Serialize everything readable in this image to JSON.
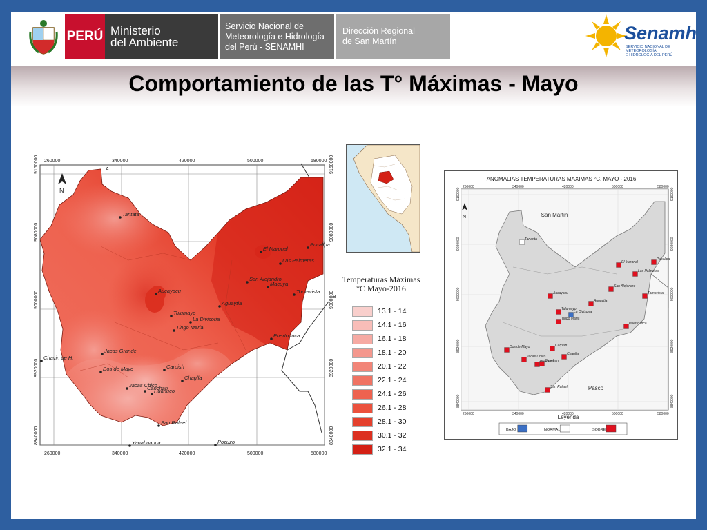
{
  "header": {
    "country": "PERÚ",
    "ministry_line1": "Ministerio",
    "ministry_line2": "del Ambiente",
    "service_line1": "Servicio Nacional de",
    "service_line2": "Meteorología e Hidrología",
    "service_line3": "del Perú - SENAMHI",
    "regional_line1": "Dirección Regional",
    "regional_line2": "de San Martín",
    "brand": "Senamhi",
    "brand_sub1": "SERVICIO NACIONAL DE METEOROLOGÍA",
    "brand_sub2": "E HIDROLOGÍA DEL PERÚ"
  },
  "title": "Comportamiento de las T° Máximas - Mayo",
  "left_map": {
    "north": "N",
    "top_ticks": [
      "260000",
      "340000",
      "420000",
      "500000",
      "580000"
    ],
    "bottom_ticks": [
      "260000",
      "340000",
      "420000",
      "500000",
      "580000"
    ],
    "left_ticks": [
      "9160000",
      "9080000",
      "9000000",
      "8920000",
      "8840000"
    ],
    "right_ticks": [
      "9160000",
      "9080000",
      "9000000",
      "8920000",
      "8840000"
    ],
    "corner_a": "A",
    "corner_b": "B",
    "places": [
      {
        "name": "Tantata"
      },
      {
        "name": "El Maronal"
      },
      {
        "name": "Pucallpa"
      },
      {
        "name": "Las Palmeras"
      },
      {
        "name": "San Alejandro"
      },
      {
        "name": "Macuya"
      },
      {
        "name": "Tornavista"
      },
      {
        "name": "Aucayacu"
      },
      {
        "name": "Aguaytia"
      },
      {
        "name": "Tulumayo"
      },
      {
        "name": "La Divisoria"
      },
      {
        "name": "Tingo Maria"
      },
      {
        "name": "Puerto Inca"
      },
      {
        "name": "Chavin de H."
      },
      {
        "name": "Jacas Grande"
      },
      {
        "name": "Dos de Mayo"
      },
      {
        "name": "Carpish"
      },
      {
        "name": "Chaglla"
      },
      {
        "name": "Jacas Chico"
      },
      {
        "name": "Canchan"
      },
      {
        "name": "Huánuco"
      },
      {
        "name": "San Rafael"
      },
      {
        "name": "Yanahuanca"
      },
      {
        "name": "Pozuzo"
      }
    ],
    "legend_title_1": "Temperaturas Máximas",
    "legend_title_2": "°C  Mayo-2016",
    "legend": [
      {
        "label": "13.1 - 14",
        "color": "#f9cfcc"
      },
      {
        "label": "14.1 - 16",
        "color": "#f8bdb8"
      },
      {
        "label": "16.1 - 18",
        "color": "#f6aaa3"
      },
      {
        "label": "18.1 - 20",
        "color": "#f4978d"
      },
      {
        "label": "20.1 - 22",
        "color": "#f28578"
      },
      {
        "label": "22.1 - 24",
        "color": "#f07363"
      },
      {
        "label": "24.1 - 26",
        "color": "#ee624f"
      },
      {
        "label": "26.1 - 28",
        "color": "#eb513d"
      },
      {
        "label": "28.1 - 30",
        "color": "#e4402d"
      },
      {
        "label": "30.1 - 32",
        "color": "#dc3020"
      },
      {
        "label": "32.1 - 34",
        "color": "#d42015"
      }
    ]
  },
  "right_map": {
    "title": "ANOMALIAS TEMPERATURAS MAXIMAS °C.  MAYO - 2016",
    "north": "N",
    "top_ticks": [
      "260000",
      "340000",
      "420000",
      "500000",
      "580000"
    ],
    "bottom_ticks": [
      "260000",
      "340000",
      "420000",
      "500000",
      "580000"
    ],
    "left_ticks": [
      "9160000",
      "9080000",
      "9000000",
      "8920000",
      "8840000"
    ],
    "right_ticks": [
      "9160000",
      "9080000",
      "9000000",
      "8920000",
      "8840000"
    ],
    "region_north": "San Martin",
    "region_south": "Pasco",
    "legend_title": "Leyenda",
    "legend": [
      {
        "label": "BAJO",
        "color": "#3b6fc4"
      },
      {
        "label": "NORMAL",
        "color": "#ffffff"
      },
      {
        "label": "SOBRE",
        "color": "#e0101e"
      }
    ],
    "stations": [
      {
        "name": "Tananta",
        "class": "NORMAL"
      },
      {
        "name": "El Maronal",
        "class": "SOBRE"
      },
      {
        "name": "Pucallpa",
        "class": "SOBRE"
      },
      {
        "name": "Las Palmeras",
        "class": "SOBRE"
      },
      {
        "name": "San Alejandro",
        "class": "SOBRE"
      },
      {
        "name": "Tornavista",
        "class": "SOBRE"
      },
      {
        "name": "Aucayacu",
        "class": "SOBRE"
      },
      {
        "name": "Aguaytia",
        "class": "SOBRE"
      },
      {
        "name": "Tulumayo",
        "class": "SOBRE"
      },
      {
        "name": "La Divisoria",
        "class": "BAJO"
      },
      {
        "name": "Tingo Maria",
        "class": "SOBRE"
      },
      {
        "name": "Puerto Inca",
        "class": "SOBRE"
      },
      {
        "name": "Dos de Mayo",
        "class": "SOBRE"
      },
      {
        "name": "Carpish",
        "class": "SOBRE"
      },
      {
        "name": "Jacas Chico",
        "class": "SOBRE"
      },
      {
        "name": "Canchan",
        "class": "SOBRE"
      },
      {
        "name": "Chaglla",
        "class": "SOBRE"
      },
      {
        "name": "San Rafael",
        "class": "SOBRE"
      },
      {
        "name": "Huánuco",
        "class": "SOBRE"
      }
    ]
  }
}
